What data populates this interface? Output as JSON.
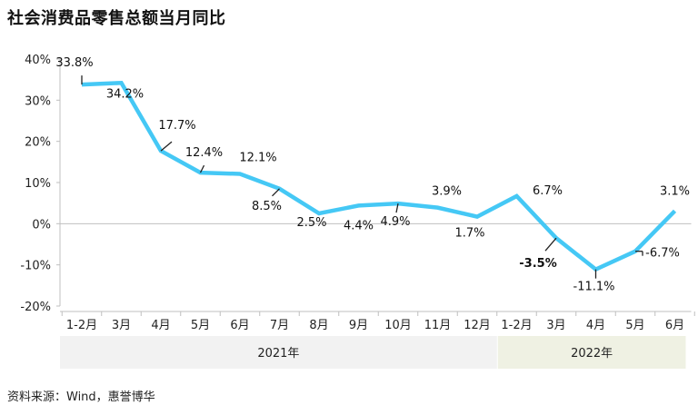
{
  "title": "社会消费品零售总额当月同比",
  "source": "资料来源：Wind，惠誉博华",
  "chart_data": {
    "type": "line",
    "categories": [
      "1-2月",
      "3月",
      "4月",
      "5月",
      "6月",
      "7月",
      "8月",
      "9月",
      "10月",
      "11月",
      "12月",
      "1-2月",
      "3月",
      "4月",
      "5月",
      "6月"
    ],
    "series": [
      {
        "values": [
          33.8,
          34.2,
          17.7,
          12.4,
          12.1,
          8.5,
          2.5,
          4.4,
          4.9,
          3.9,
          1.7,
          6.7,
          -3.5,
          -11.1,
          -6.7,
          3.1
        ]
      }
    ],
    "data_labels": [
      "33.8%",
      "34.2%",
      "17.7%",
      "12.4%",
      "12.1%",
      "8.5%",
      "2.5%",
      "4.4%",
      "4.9%",
      "3.9%",
      "1.7%",
      "6.7%",
      "-3.5%",
      "-11.1%",
      "-6.7%",
      "3.1%"
    ],
    "year_groups": [
      {
        "label": "2021年",
        "start": 0,
        "end": 10
      },
      {
        "label": "2022年",
        "start": 11,
        "end": 15
      }
    ],
    "ylim": [
      -20,
      40
    ],
    "yticks": [
      -20,
      -10,
      0,
      10,
      20,
      30,
      40
    ],
    "ytick_labels": [
      "-20%",
      "-10%",
      "0%",
      "10%",
      "20%",
      "30%",
      "40%"
    ],
    "xlabel": "",
    "ylabel": "",
    "grid": false,
    "colors": {
      "line": "#45C8F5",
      "axis": "#bfbfbf",
      "group_2021": "#f2f2f2",
      "group_2022": "#eff1e3"
    }
  }
}
